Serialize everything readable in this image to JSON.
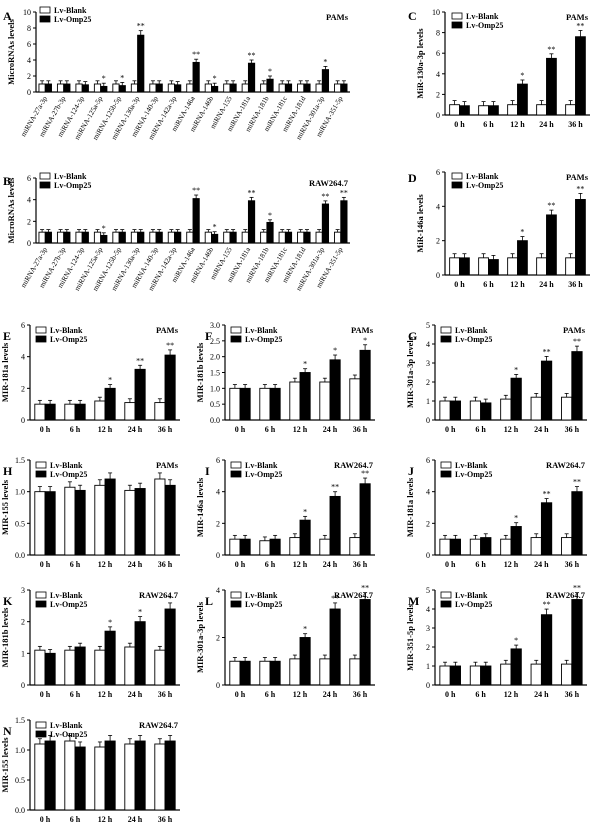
{
  "figure": {
    "legend_blank": "Lv-Blank",
    "legend_omp": "Lv-Omp25",
    "colors": {
      "blank": "#ffffff",
      "omp": "#000000",
      "axis": "#000000"
    }
  },
  "chart_data": [
    {
      "id": "A",
      "type": "bar",
      "panel_letter": "A",
      "cell_label": "PAMs",
      "ylabel": "MicroRNAs levels",
      "ylim": [
        0,
        10
      ],
      "yticks": [
        0,
        2,
        4,
        6,
        8,
        10
      ],
      "categories": [
        "miRNA-27a-3p",
        "miRNA-27b-3p",
        "miRNA-124-3p",
        "miRNA-125a-5p",
        "miRNA-125b-5p",
        "miRNA-130a-3p",
        "miRNA-140-3p",
        "miRNA-142a-3p",
        "miRNA-146a",
        "miRNA-146b",
        "miRNA-155",
        "miRNA-181a",
        "miRNA-181b",
        "miRNA-181c",
        "miRNA-181d",
        "miRNA-301a-3p",
        "miRNA-351-5p"
      ],
      "series": [
        {
          "name": "Lv-Blank",
          "values": [
            1.0,
            1.0,
            1.0,
            1.0,
            1.0,
            1.0,
            1.0,
            1.0,
            1.0,
            1.0,
            1.0,
            1.0,
            1.0,
            1.0,
            1.0,
            1.0,
            1.0
          ]
        },
        {
          "name": "Lv-Omp25",
          "values": [
            1.0,
            1.0,
            0.9,
            0.7,
            0.8,
            7.1,
            1.0,
            0.9,
            3.7,
            0.7,
            1.0,
            3.6,
            1.6,
            1.0,
            1.0,
            2.8,
            1.0
          ]
        }
      ],
      "annotations": [
        "",
        "",
        "",
        "*",
        "*",
        "**",
        "",
        "",
        "**",
        "*",
        "",
        "**",
        "*",
        "",
        "",
        "*",
        ""
      ]
    },
    {
      "id": "B",
      "type": "bar",
      "panel_letter": "B",
      "cell_label": "RAW264.7",
      "ylabel": "MicroRNAs levels",
      "ylim": [
        0,
        6
      ],
      "yticks": [
        0,
        2,
        4,
        6
      ],
      "categories": [
        "miRNA-27a-3p",
        "miRNA-27b-3p",
        "miRNA-124-3p",
        "miRNA-125a-5p",
        "miRNA-125b-5p",
        "miRNA-130a-3p",
        "miRNA-140-3p",
        "miRNA-142a-3p",
        "miRNA-146a",
        "miRNA-146b",
        "miRNA-155",
        "miRNA-181a",
        "miRNA-181b",
        "miRNA-181c",
        "miRNA-181d",
        "miRNA-301a-3p",
        "miRNA-351-5p"
      ],
      "series": [
        {
          "name": "Lv-Blank",
          "values": [
            1.0,
            1.0,
            1.0,
            1.0,
            1.0,
            1.0,
            1.0,
            1.0,
            1.0,
            1.0,
            1.0,
            1.0,
            1.0,
            1.0,
            1.0,
            1.0,
            1.0
          ]
        },
        {
          "name": "Lv-Omp25",
          "values": [
            1.0,
            1.0,
            1.0,
            0.7,
            1.0,
            1.0,
            1.0,
            1.0,
            4.1,
            0.8,
            1.0,
            3.9,
            1.9,
            1.0,
            1.0,
            3.6,
            3.9
          ]
        }
      ],
      "annotations": [
        "",
        "",
        "",
        "*",
        "",
        "",
        "",
        "",
        "**",
        "*",
        "",
        "**",
        "*",
        "",
        "",
        "**",
        "**"
      ]
    },
    {
      "id": "C",
      "type": "bar",
      "panel_letter": "C",
      "cell_label": "PAMs",
      "ylabel": "MiR-130a-3p levels",
      "ylim": [
        0,
        10
      ],
      "yticks": [
        0,
        2,
        4,
        6,
        8,
        10
      ],
      "categories": [
        "0 h",
        "6 h",
        "12 h",
        "24 h",
        "36 h"
      ],
      "series": [
        {
          "name": "Lv-Blank",
          "values": [
            1.0,
            0.9,
            1.0,
            1.0,
            1.0
          ]
        },
        {
          "name": "Lv-Omp25",
          "values": [
            0.9,
            0.9,
            3.0,
            5.5,
            7.6
          ]
        }
      ],
      "annotations": [
        "",
        "",
        "*",
        "**",
        "**"
      ]
    },
    {
      "id": "D",
      "type": "bar",
      "panel_letter": "D",
      "cell_label": "PAMs",
      "ylabel": "MiR-146a levels",
      "ylim": [
        0,
        6
      ],
      "yticks": [
        0,
        2,
        4,
        6
      ],
      "categories": [
        "0 h",
        "6 h",
        "12 h",
        "24 h",
        "36 h"
      ],
      "series": [
        {
          "name": "Lv-Blank",
          "values": [
            1.0,
            1.0,
            1.0,
            1.0,
            1.0
          ]
        },
        {
          "name": "Lv-Omp25",
          "values": [
            1.0,
            0.9,
            2.0,
            3.5,
            4.4
          ]
        }
      ],
      "annotations": [
        "",
        "",
        "*",
        "**",
        "**"
      ]
    },
    {
      "id": "E",
      "type": "bar",
      "panel_letter": "E",
      "cell_label": "PAMs",
      "ylabel": "MIR-181a levels",
      "ylim": [
        0,
        6
      ],
      "yticks": [
        0,
        2,
        4,
        6
      ],
      "categories": [
        "0 h",
        "6 h",
        "12 h",
        "24 h",
        "36 h"
      ],
      "series": [
        {
          "name": "Lv-Blank",
          "values": [
            1.0,
            1.0,
            1.2,
            1.1,
            1.1
          ]
        },
        {
          "name": "Lv-Omp25",
          "values": [
            1.0,
            1.0,
            2.0,
            3.2,
            4.1
          ]
        }
      ],
      "annotations": [
        "",
        "",
        "*",
        "**",
        "**"
      ]
    },
    {
      "id": "F",
      "type": "bar",
      "panel_letter": "F",
      "cell_label": "PAMs",
      "ylabel": "MIR-181b levels",
      "ylim": [
        0,
        3
      ],
      "yticks": [
        0.0,
        0.5,
        1.0,
        1.5,
        2.0,
        2.5,
        3.0
      ],
      "categories": [
        "0 h",
        "6 h",
        "12 h",
        "24 h",
        "36 h"
      ],
      "series": [
        {
          "name": "Lv-Blank",
          "values": [
            1.0,
            1.0,
            1.2,
            1.2,
            1.3
          ]
        },
        {
          "name": "Lv-Omp25",
          "values": [
            1.0,
            1.0,
            1.5,
            1.9,
            2.2
          ]
        }
      ],
      "annotations": [
        "",
        "",
        "*",
        "*",
        "*"
      ]
    },
    {
      "id": "G",
      "type": "bar",
      "panel_letter": "G",
      "cell_label": "PAMs",
      "ylabel": "MIR-301a-3p levels",
      "ylim": [
        0,
        5
      ],
      "yticks": [
        0,
        1,
        2,
        3,
        4,
        5
      ],
      "categories": [
        "0 h",
        "6 h",
        "12 h",
        "24 h",
        "36 h"
      ],
      "series": [
        {
          "name": "Lv-Blank",
          "values": [
            1.0,
            1.0,
            1.1,
            1.2,
            1.2
          ]
        },
        {
          "name": "Lv-Omp25",
          "values": [
            1.0,
            0.9,
            2.2,
            3.1,
            3.6
          ]
        }
      ],
      "annotations": [
        "",
        "",
        "*",
        "**",
        "**"
      ]
    },
    {
      "id": "H",
      "type": "bar",
      "panel_letter": "H",
      "cell_label": "PAMs",
      "ylabel": "MIR-155 levels",
      "ylim": [
        0,
        1.5
      ],
      "yticks": [
        0.0,
        0.5,
        1.0,
        1.5
      ],
      "categories": [
        "0 h",
        "6 h",
        "12 h",
        "24 h",
        "36 h"
      ],
      "series": [
        {
          "name": "Lv-Blank",
          "values": [
            1.0,
            1.07,
            1.1,
            1.02,
            1.2
          ]
        },
        {
          "name": "Lv-Omp25",
          "values": [
            1.0,
            1.02,
            1.2,
            1.05,
            1.1
          ]
        }
      ],
      "annotations": [
        "",
        "",
        "",
        "",
        ""
      ]
    },
    {
      "id": "I",
      "type": "bar",
      "panel_letter": "I",
      "cell_label": "RAW264.7",
      "ylabel": "MIR-146a levels",
      "ylim": [
        0,
        6
      ],
      "yticks": [
        0,
        2,
        4,
        6
      ],
      "categories": [
        "0 h",
        "6 h",
        "12 h",
        "24 h",
        "36 h"
      ],
      "series": [
        {
          "name": "Lv-Blank",
          "values": [
            1.0,
            0.9,
            1.1,
            1.0,
            1.1
          ]
        },
        {
          "name": "Lv-Omp25",
          "values": [
            1.0,
            1.0,
            2.2,
            3.7,
            4.5
          ]
        }
      ],
      "annotations": [
        "",
        "",
        "*",
        "**",
        "**"
      ]
    },
    {
      "id": "J",
      "type": "bar",
      "panel_letter": "J",
      "cell_label": "RAW264.7",
      "ylabel": "MIR-181a levels",
      "ylim": [
        0,
        6
      ],
      "yticks": [
        0,
        2,
        4,
        6
      ],
      "categories": [
        "0 h",
        "6 h",
        "12 h",
        "24 h",
        "36 h"
      ],
      "series": [
        {
          "name": "Lv-Blank",
          "values": [
            1.0,
            1.0,
            1.0,
            1.1,
            1.1
          ]
        },
        {
          "name": "Lv-Omp25",
          "values": [
            1.0,
            1.1,
            1.8,
            3.3,
            4.0
          ]
        }
      ],
      "annotations": [
        "",
        "",
        "*",
        "**",
        "**"
      ]
    },
    {
      "id": "K",
      "type": "bar",
      "panel_letter": "K",
      "cell_label": "RAW264.7",
      "ylabel": "MIR-181b levels",
      "ylim": [
        0,
        3
      ],
      "yticks": [
        0,
        1,
        2,
        3
      ],
      "categories": [
        "0 h",
        "6 h",
        "12 h",
        "24 h",
        "36 h"
      ],
      "series": [
        {
          "name": "Lv-Blank",
          "values": [
            1.1,
            1.1,
            1.1,
            1.2,
            1.1
          ]
        },
        {
          "name": "Lv-Omp25",
          "values": [
            1.0,
            1.2,
            1.7,
            2.0,
            2.4
          ]
        }
      ],
      "annotations": [
        "",
        "",
        "*",
        "*",
        "*"
      ]
    },
    {
      "id": "L",
      "type": "bar",
      "panel_letter": "L",
      "cell_label": "RAW264.7",
      "ylabel": "MIR-301a-3p levels",
      "ylim": [
        0,
        4
      ],
      "yticks": [
        0,
        2,
        4
      ],
      "categories": [
        "0 h",
        "6 h",
        "12 h",
        "24 h",
        "36 h"
      ],
      "series": [
        {
          "name": "Lv-Blank",
          "values": [
            1.0,
            1.0,
            1.1,
            1.1,
            1.1
          ]
        },
        {
          "name": "Lv-Omp25",
          "values": [
            1.0,
            1.0,
            2.0,
            3.2,
            3.6
          ]
        }
      ],
      "annotations": [
        "",
        "",
        "*",
        "**",
        "**"
      ]
    },
    {
      "id": "M",
      "type": "bar",
      "panel_letter": "M",
      "cell_label": "RAW264.7",
      "ylabel": "MIR-351-5p levels",
      "ylim": [
        0,
        5
      ],
      "yticks": [
        0,
        1,
        2,
        3,
        4,
        5
      ],
      "categories": [
        "0 h",
        "6 h",
        "12 h",
        "24 h",
        "36 h"
      ],
      "series": [
        {
          "name": "Lv-Blank",
          "values": [
            1.0,
            1.0,
            1.1,
            1.1,
            1.1
          ]
        },
        {
          "name": "Lv-Omp25",
          "values": [
            1.0,
            1.0,
            1.9,
            3.7,
            4.5
          ]
        }
      ],
      "annotations": [
        "",
        "",
        "*",
        "**",
        "**"
      ]
    },
    {
      "id": "N",
      "type": "bar",
      "panel_letter": "N",
      "cell_label": "RAW264.7",
      "ylabel": "MIR-155 levels",
      "ylim": [
        0,
        1.5
      ],
      "yticks": [
        0.0,
        0.5,
        1.0,
        1.5
      ],
      "categories": [
        "0 h",
        "6 h",
        "12 h",
        "24 h",
        "36 h"
      ],
      "series": [
        {
          "name": "Lv-Blank",
          "values": [
            1.1,
            1.15,
            1.05,
            1.1,
            1.1
          ]
        },
        {
          "name": "Lv-Omp25",
          "values": [
            1.15,
            1.05,
            1.15,
            1.15,
            1.15
          ]
        }
      ],
      "annotations": [
        "",
        "",
        "",
        "",
        ""
      ]
    }
  ]
}
